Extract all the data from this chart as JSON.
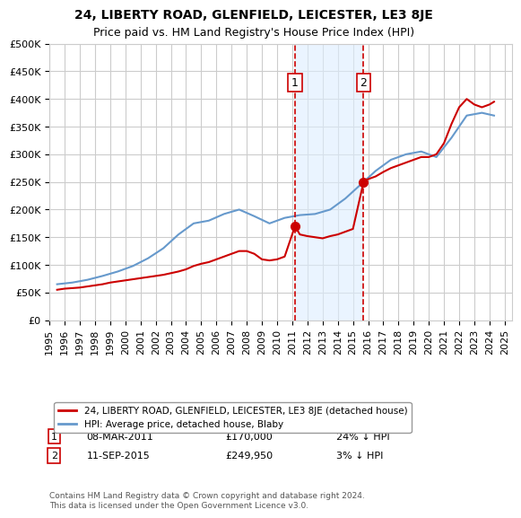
{
  "title": "24, LIBERTY ROAD, GLENFIELD, LEICESTER, LE3 8JE",
  "subtitle": "Price paid vs. HM Land Registry's House Price Index (HPI)",
  "footer": "Contains HM Land Registry data © Crown copyright and database right 2024.\nThis data is licensed under the Open Government Licence v3.0.",
  "legend_property": "24, LIBERTY ROAD, GLENFIELD, LEICESTER, LE3 8JE (detached house)",
  "legend_hpi": "HPI: Average price, detached house, Blaby",
  "sale1_date": "08-MAR-2011",
  "sale1_price": 170000,
  "sale1_label": "£170,000",
  "sale1_hpi": "24% ↓ HPI",
  "sale1_year": 2011.18,
  "sale2_date": "11-SEP-2015",
  "sale2_price": 249950,
  "sale2_label": "£249,950",
  "sale2_hpi": "3% ↓ HPI",
  "sale2_year": 2015.7,
  "ylim": [
    0,
    500000
  ],
  "xlim": [
    1995,
    2025.5
  ],
  "yticks": [
    0,
    50000,
    100000,
    150000,
    200000,
    250000,
    300000,
    350000,
    400000,
    450000,
    500000
  ],
  "xticks": [
    1995,
    1996,
    1997,
    1998,
    1999,
    2000,
    2001,
    2002,
    2003,
    2004,
    2005,
    2006,
    2007,
    2008,
    2009,
    2010,
    2011,
    2012,
    2013,
    2014,
    2015,
    2016,
    2017,
    2018,
    2019,
    2020,
    2021,
    2022,
    2023,
    2024,
    2025
  ],
  "property_color": "#cc0000",
  "hpi_color": "#6699cc",
  "shade_color": "#ddeeff",
  "grid_color": "#cccccc",
  "hpi_data": {
    "years": [
      1995.5,
      1996.5,
      1997.5,
      1998.5,
      1999.5,
      2000.5,
      2001.5,
      2002.5,
      2003.5,
      2004.5,
      2005.5,
      2006.5,
      2007.5,
      2008.5,
      2009.5,
      2010.5,
      2011.5,
      2012.5,
      2013.5,
      2014.5,
      2015.5,
      2016.5,
      2017.5,
      2018.5,
      2019.5,
      2020.5,
      2021.5,
      2022.5,
      2023.5,
      2024.3
    ],
    "values": [
      65000,
      68000,
      73000,
      80000,
      88000,
      98000,
      112000,
      130000,
      155000,
      175000,
      180000,
      192000,
      200000,
      188000,
      175000,
      185000,
      190000,
      192000,
      200000,
      220000,
      245000,
      270000,
      290000,
      300000,
      305000,
      295000,
      330000,
      370000,
      375000,
      370000
    ]
  },
  "property_data": {
    "years": [
      1995.5,
      1996.0,
      1997.0,
      1997.5,
      1998.0,
      1998.5,
      1999.0,
      1999.5,
      2000.0,
      2000.5,
      2001.0,
      2001.5,
      2002.0,
      2002.5,
      2003.0,
      2003.5,
      2004.0,
      2004.5,
      2005.0,
      2005.5,
      2006.0,
      2006.5,
      2007.0,
      2007.5,
      2008.0,
      2008.5,
      2009.0,
      2009.5,
      2010.0,
      2010.5,
      2011.18,
      2011.5,
      2012.0,
      2012.5,
      2013.0,
      2013.5,
      2014.0,
      2014.5,
      2015.0,
      2015.7,
      2016.0,
      2016.5,
      2017.0,
      2017.5,
      2018.0,
      2018.5,
      2019.0,
      2019.5,
      2020.0,
      2020.5,
      2021.0,
      2021.5,
      2022.0,
      2022.5,
      2023.0,
      2023.5,
      2024.0,
      2024.3
    ],
    "values": [
      55000,
      57000,
      59000,
      61000,
      63000,
      65000,
      68000,
      70000,
      72000,
      74000,
      76000,
      78000,
      80000,
      82000,
      85000,
      88000,
      92000,
      98000,
      102000,
      105000,
      110000,
      115000,
      120000,
      125000,
      125000,
      120000,
      110000,
      108000,
      110000,
      115000,
      170000,
      155000,
      152000,
      150000,
      148000,
      152000,
      155000,
      160000,
      165000,
      249950,
      255000,
      260000,
      268000,
      275000,
      280000,
      285000,
      290000,
      295000,
      295000,
      300000,
      320000,
      355000,
      385000,
      400000,
      390000,
      385000,
      390000,
      395000
    ]
  }
}
